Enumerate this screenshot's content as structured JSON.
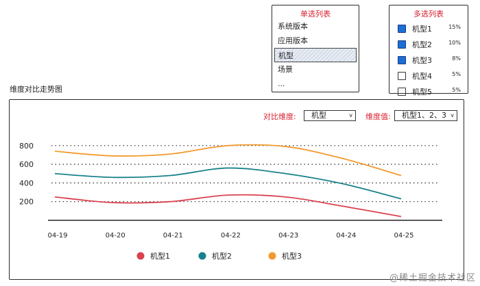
{
  "single_list": {
    "title": "单选列表",
    "items": [
      "系统版本",
      "应用版本",
      "机型",
      "场景",
      "..."
    ],
    "selected": "机型"
  },
  "multi_list": {
    "title": "多选列表",
    "items": [
      {
        "name": "机型1",
        "pct": "15%",
        "checked": true
      },
      {
        "name": "机型2",
        "pct": "10%",
        "checked": true
      },
      {
        "name": "机型3",
        "pct": "8%",
        "checked": true
      },
      {
        "name": "机型4",
        "pct": "5%",
        "checked": false
      },
      {
        "name": "机型5",
        "pct": "5%",
        "checked": false
      }
    ]
  },
  "section_title": "维度对比走势图",
  "controls": {
    "compare_label": "对比维度:",
    "compare_value": "机型",
    "value_label": "维度值:",
    "value_value": "机型1、2、3"
  },
  "chart_data": {
    "type": "line",
    "x": [
      "04-19",
      "04-20",
      "04-21",
      "04-22",
      "04-23",
      "04-24",
      "04-25"
    ],
    "y_ticks": [
      200,
      400,
      600,
      800
    ],
    "ylim": [
      0,
      850
    ],
    "series": [
      {
        "name": "机型1",
        "color": "#d9424f",
        "values": [
          250,
          190,
          200,
          270,
          250,
          150,
          40
        ]
      },
      {
        "name": "机型2",
        "color": "#18828a",
        "values": [
          500,
          460,
          480,
          560,
          500,
          390,
          230
        ]
      },
      {
        "name": "机型3",
        "color": "#f39a2e",
        "values": [
          740,
          690,
          710,
          800,
          790,
          660,
          480
        ]
      }
    ]
  },
  "watermark": "@稀土掘金技术社区"
}
